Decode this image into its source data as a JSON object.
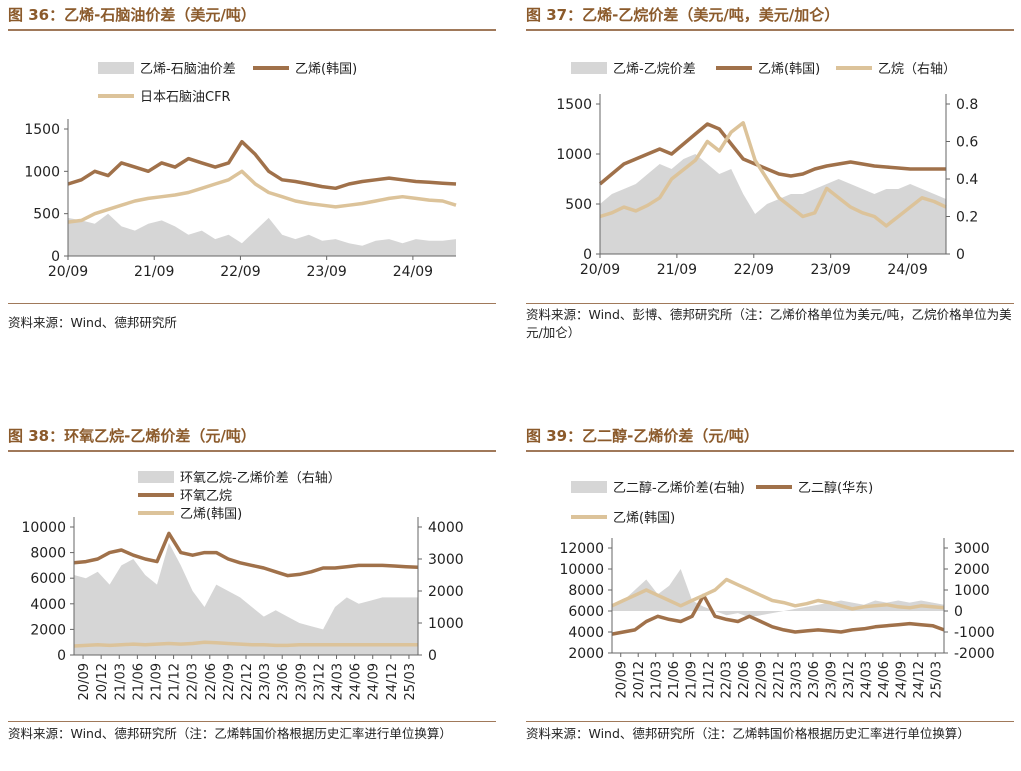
{
  "colors": {
    "spread": "#d6d6d6",
    "brown": "#a0714a",
    "tan": "#dcc39a",
    "title": "#8b5a2b"
  },
  "panels": [
    {
      "title": "图 36：乙烯-石脑油价差（美元/吨）",
      "source": "资料来源：Wind、德邦研究所",
      "chart_data": {
        "type": "line",
        "x_ticks": [
          "20/09",
          "21/09",
          "22/09",
          "23/09",
          "24/09"
        ],
        "y_left_ticks": [
          "0",
          "500",
          "1000",
          "1500"
        ],
        "ylim": [
          0,
          1500
        ],
        "legend": [
          "乙烯-石脑油价差",
          "乙烯(韩国)",
          "日本石脑油CFR"
        ],
        "series": [
          {
            "name": "乙烯-石脑油价差",
            "type": "area",
            "axis": "left",
            "values": [
              450,
              420,
              380,
              500,
              350,
              300,
              380,
              420,
              350,
              250,
              300,
              200,
              250,
              150,
              300,
              450,
              250,
              200,
              250,
              180,
              200,
              150,
              120,
              180,
              200,
              150,
              200,
              180,
              180,
              200
            ]
          },
          {
            "name": "乙烯(韩国)",
            "type": "line",
            "axis": "left",
            "values": [
              850,
              900,
              1000,
              950,
              1100,
              1050,
              1000,
              1100,
              1050,
              1150,
              1100,
              1050,
              1100,
              1350,
              1200,
              1000,
              900,
              880,
              850,
              820,
              800,
              850,
              880,
              900,
              920,
              900,
              880,
              870,
              860,
              850
            ]
          },
          {
            "name": "日本石脑油CFR",
            "type": "line",
            "axis": "left",
            "values": [
              400,
              420,
              500,
              550,
              600,
              650,
              680,
              700,
              720,
              750,
              800,
              850,
              900,
              1000,
              850,
              750,
              700,
              650,
              620,
              600,
              580,
              600,
              620,
              650,
              680,
              700,
              680,
              660,
              650,
              600
            ]
          }
        ]
      }
    },
    {
      "title": "图 37：乙烯-乙烷价差（美元/吨，美元/加仑）",
      "source": "资料来源：Wind、彭博、德邦研究所（注：乙烯价格单位为美元/吨，乙烷价格单位为美元/加仑）",
      "chart_data": {
        "type": "line",
        "x_ticks": [
          "20/09",
          "21/09",
          "22/09",
          "23/09",
          "24/09"
        ],
        "y_left_ticks": [
          "0",
          "500",
          "1000",
          "1500"
        ],
        "y_right_ticks": [
          "0",
          "0.2",
          "0.4",
          "0.6",
          "0.8"
        ],
        "ylim": [
          0,
          1500
        ],
        "y2lim": [
          0,
          0.8
        ],
        "legend": [
          "乙烯-乙烷价差",
          "乙烯(韩国)",
          "乙烷（右轴）"
        ],
        "series": [
          {
            "name": "乙烯-乙烷价差",
            "type": "area",
            "axis": "left",
            "values": [
              500,
              600,
              650,
              700,
              800,
              900,
              850,
              950,
              1000,
              900,
              800,
              850,
              600,
              400,
              500,
              550,
              600,
              600,
              650,
              700,
              750,
              700,
              650,
              600,
              650,
              650,
              700,
              650,
              600,
              550
            ]
          },
          {
            "name": "乙烯(韩国)",
            "type": "line",
            "axis": "left",
            "values": [
              700,
              800,
              900,
              950,
              1000,
              1050,
              1000,
              1100,
              1200,
              1300,
              1250,
              1100,
              950,
              900,
              850,
              800,
              780,
              800,
              850,
              880,
              900,
              920,
              900,
              880,
              870,
              860,
              850,
              850,
              850,
              850
            ]
          },
          {
            "name": "乙烷（右轴）",
            "type": "line",
            "axis": "right",
            "values": [
              0.2,
              0.22,
              0.25,
              0.23,
              0.26,
              0.3,
              0.4,
              0.45,
              0.5,
              0.6,
              0.55,
              0.65,
              0.7,
              0.5,
              0.4,
              0.3,
              0.25,
              0.2,
              0.22,
              0.35,
              0.3,
              0.25,
              0.22,
              0.2,
              0.15,
              0.2,
              0.25,
              0.3,
              0.28,
              0.25
            ]
          }
        ]
      }
    },
    {
      "title": "图 38：环氧乙烷-乙烯价差（元/吨）",
      "source": "资料来源：Wind、德邦研究所（注：乙烯韩国价格根据历史汇率进行单位换算）",
      "chart_data": {
        "type": "line",
        "x_ticks": [
          "20/09",
          "20/12",
          "21/03",
          "21/06",
          "21/09",
          "21/12",
          "22/03",
          "22/06",
          "22/09",
          "22/12",
          "23/03",
          "23/06",
          "23/09",
          "23/12",
          "24/03",
          "24/06",
          "24/09",
          "24/12",
          "25/03"
        ],
        "y_left_ticks": [
          "0",
          "2000",
          "4000",
          "6000",
          "8000",
          "10000"
        ],
        "y_right_ticks": [
          "0",
          "1000",
          "2000",
          "3000",
          "4000"
        ],
        "ylim": [
          0,
          10000
        ],
        "y2lim": [
          0,
          4000
        ],
        "legend": [
          "环氧乙烷-乙烯价差（右轴）",
          "环氧乙烷",
          "乙烯(韩国)"
        ],
        "series": [
          {
            "name": "环氧乙烷-乙烯价差（右轴）",
            "type": "area",
            "axis": "right",
            "values": [
              2500,
              2400,
              2600,
              2200,
              2800,
              3000,
              2500,
              2200,
              3500,
              2800,
              2000,
              1500,
              2200,
              2000,
              1800,
              1500,
              1200,
              1400,
              1200,
              1000,
              900,
              800,
              1500,
              1800,
              1600,
              1700,
              1800,
              1800,
              1800,
              1800
            ]
          },
          {
            "name": "环氧乙烷",
            "type": "line",
            "axis": "left",
            "values": [
              7200,
              7300,
              7500,
              8000,
              8200,
              7800,
              7500,
              7300,
              9500,
              8000,
              7800,
              8000,
              8000,
              7500,
              7200,
              7000,
              6800,
              6500,
              6200,
              6300,
              6500,
              6800,
              6800,
              6900,
              7000,
              7000,
              7000,
              6950,
              6900,
              6850
            ]
          },
          {
            "name": "乙烯(韩国)",
            "type": "line",
            "axis": "left",
            "values": [
              700,
              750,
              800,
              750,
              800,
              850,
              800,
              850,
              900,
              850,
              900,
              1000,
              950,
              900,
              850,
              800,
              800,
              750,
              750,
              800,
              800,
              800,
              800,
              800,
              800,
              800,
              800,
              800,
              800,
              800
            ]
          }
        ]
      }
    },
    {
      "title": "图 39：乙二醇-乙烯价差（元/吨）",
      "source": "资料来源：Wind、德邦研究所（注：乙烯韩国价格根据历史汇率进行单位换算）",
      "chart_data": {
        "type": "line",
        "x_ticks": [
          "20/09",
          "20/12",
          "21/03",
          "21/06",
          "21/09",
          "21/12",
          "22/03",
          "22/06",
          "22/09",
          "22/12",
          "23/03",
          "23/06",
          "23/09",
          "23/12",
          "24/03",
          "24/06",
          "24/09",
          "24/12",
          "25/03"
        ],
        "y_left_ticks": [
          "2000",
          "4000",
          "6000",
          "8000",
          "10000",
          "12000"
        ],
        "y_right_ticks": [
          "-2000",
          "-1000",
          "0",
          "1000",
          "2000",
          "3000"
        ],
        "ylim": [
          2000,
          12000
        ],
        "y2lim": [
          -2000,
          3000
        ],
        "legend": [
          "乙二醇-乙烯价差(右轴)",
          "乙二醇(华东)",
          "乙烯(韩国)"
        ],
        "series": [
          {
            "name": "乙二醇-乙烯价差(右轴)",
            "type": "area",
            "axis": "right",
            "values": [
              200,
              500,
              1000,
              1500,
              800,
              1200,
              2000,
              500,
              200,
              0,
              -200,
              -100,
              -300,
              -200,
              -100,
              0,
              100,
              200,
              300,
              400,
              500,
              400,
              300,
              500,
              400,
              500,
              400,
              500,
              400,
              300
            ]
          },
          {
            "name": "乙二醇(华东)",
            "type": "line",
            "axis": "left",
            "values": [
              3800,
              4000,
              4200,
              5000,
              5500,
              5200,
              5000,
              5500,
              7500,
              5500,
              5200,
              5000,
              5500,
              5000,
              4500,
              4200,
              4000,
              4100,
              4200,
              4100,
              4000,
              4200,
              4300,
              4500,
              4600,
              4700,
              4800,
              4700,
              4600,
              4200
            ]
          },
          {
            "name": "乙烯(韩国)",
            "type": "line",
            "axis": "left",
            "values": [
              6500,
              7000,
              7500,
              8000,
              7500,
              7000,
              6500,
              7000,
              7500,
              8000,
              9000,
              8500,
              8000,
              7500,
              7000,
              6800,
              6500,
              6700,
              7000,
              6800,
              6500,
              6200,
              6400,
              6500,
              6600,
              6400,
              6300,
              6500,
              6400,
              6300
            ]
          }
        ]
      }
    }
  ]
}
